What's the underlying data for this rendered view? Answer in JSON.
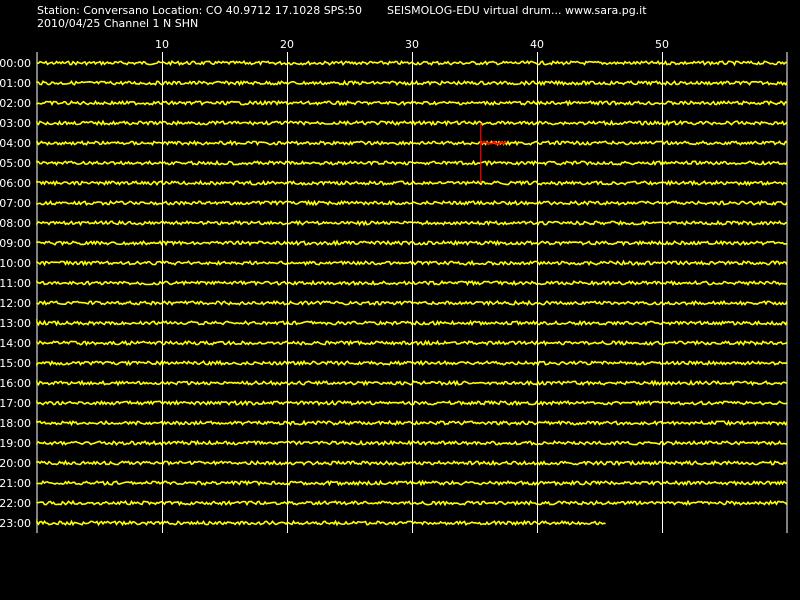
{
  "header": {
    "station_line": "Station: Conversano Location: CO 40.9712 17.1028 SPS:50",
    "date_channel_line": "2010/04/25  Channel 1 N SHN",
    "app_line": "SEISMOLOG-EDU virtual drum... www.sara.pg.it"
  },
  "colors": {
    "background": "#000000",
    "trace": "#ffff00",
    "grid": "#ffffff",
    "event": "#ff0000",
    "text": "#ffffff"
  },
  "chart_data": {
    "type": "line",
    "title": "",
    "xlabel": "",
    "ylabel": "",
    "xlim": [
      0,
      60
    ],
    "x_ticks": [
      "10",
      "20",
      "30",
      "40",
      "50"
    ],
    "x_tick_values": [
      10,
      20,
      30,
      40,
      50
    ],
    "grid": true,
    "rows": [
      {
        "label": "00:00",
        "end_minute": 60
      },
      {
        "label": "01:00",
        "end_minute": 60
      },
      {
        "label": "02:00",
        "end_minute": 60
      },
      {
        "label": "03:00",
        "end_minute": 60
      },
      {
        "label": "04:00",
        "end_minute": 60
      },
      {
        "label": "05:00",
        "end_minute": 60
      },
      {
        "label": "06:00",
        "end_minute": 60
      },
      {
        "label": "07:00",
        "end_minute": 60
      },
      {
        "label": "08:00",
        "end_minute": 60
      },
      {
        "label": "09:00",
        "end_minute": 60
      },
      {
        "label": "10:00",
        "end_minute": 60
      },
      {
        "label": "11:00",
        "end_minute": 60
      },
      {
        "label": "12:00",
        "end_minute": 60
      },
      {
        "label": "13:00",
        "end_minute": 60
      },
      {
        "label": "14:00",
        "end_minute": 60
      },
      {
        "label": "15:00",
        "end_minute": 60
      },
      {
        "label": "16:00",
        "end_minute": 60
      },
      {
        "label": "17:00",
        "end_minute": 60
      },
      {
        "label": "18:00",
        "end_minute": 60
      },
      {
        "label": "19:00",
        "end_minute": 60
      },
      {
        "label": "20:00",
        "end_minute": 60
      },
      {
        "label": "21:00",
        "end_minute": 60
      },
      {
        "label": "22:00",
        "end_minute": 60
      },
      {
        "label": "23:00",
        "end_minute": 45.5
      }
    ],
    "event": {
      "row": "04:00",
      "start_minute": 35.5,
      "end_minute": 37.6,
      "marker_rows_span": [
        "03:00",
        "06:00"
      ]
    }
  }
}
